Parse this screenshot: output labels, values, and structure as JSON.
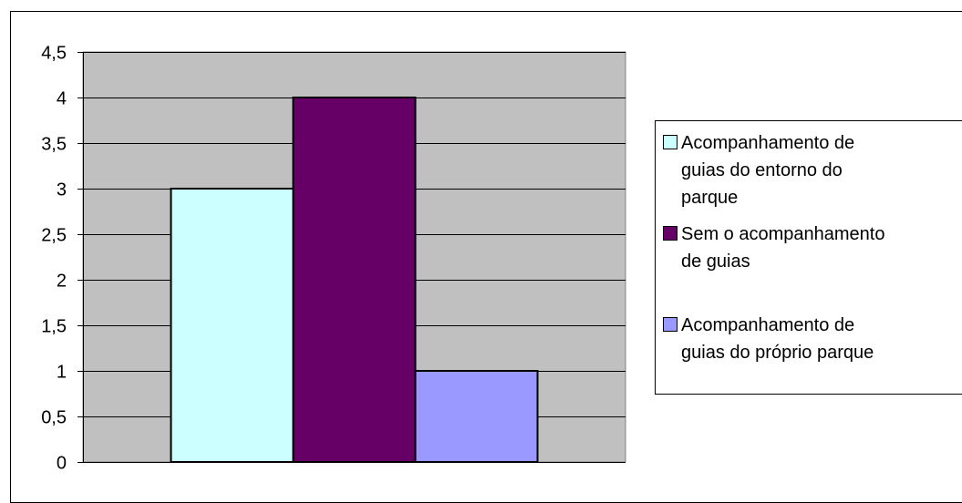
{
  "chart_data": {
    "type": "bar",
    "title": "",
    "xlabel": "",
    "ylabel": "",
    "ylim": [
      0,
      4.5
    ],
    "y_ticks": [
      "0",
      "0,5",
      "1",
      "1,5",
      "2",
      "2,5",
      "3",
      "3,5",
      "4",
      "4,5"
    ],
    "grid": true,
    "legend_position": "right",
    "plot_background": "#c0c0c0",
    "categories": [
      ""
    ],
    "series": [
      {
        "name": "Acompanhamento de guias do entorno do parque",
        "legend_lines": [
          "Acompanhamento de",
          "guias do entorno do",
          "parque"
        ],
        "values": [
          3
        ],
        "color": "#ccffff"
      },
      {
        "name": "Sem o acompanhamento de guias",
        "legend_lines": [
          "Sem o acompanhamento",
          "de guias"
        ],
        "values": [
          4
        ],
        "color": "#660066"
      },
      {
        "name": "Acompanhamento de guias do próprio parque",
        "legend_lines": [
          "Acompanhamento de",
          "guias do próprio parque"
        ],
        "values": [
          1
        ],
        "color": "#9999ff"
      }
    ]
  }
}
